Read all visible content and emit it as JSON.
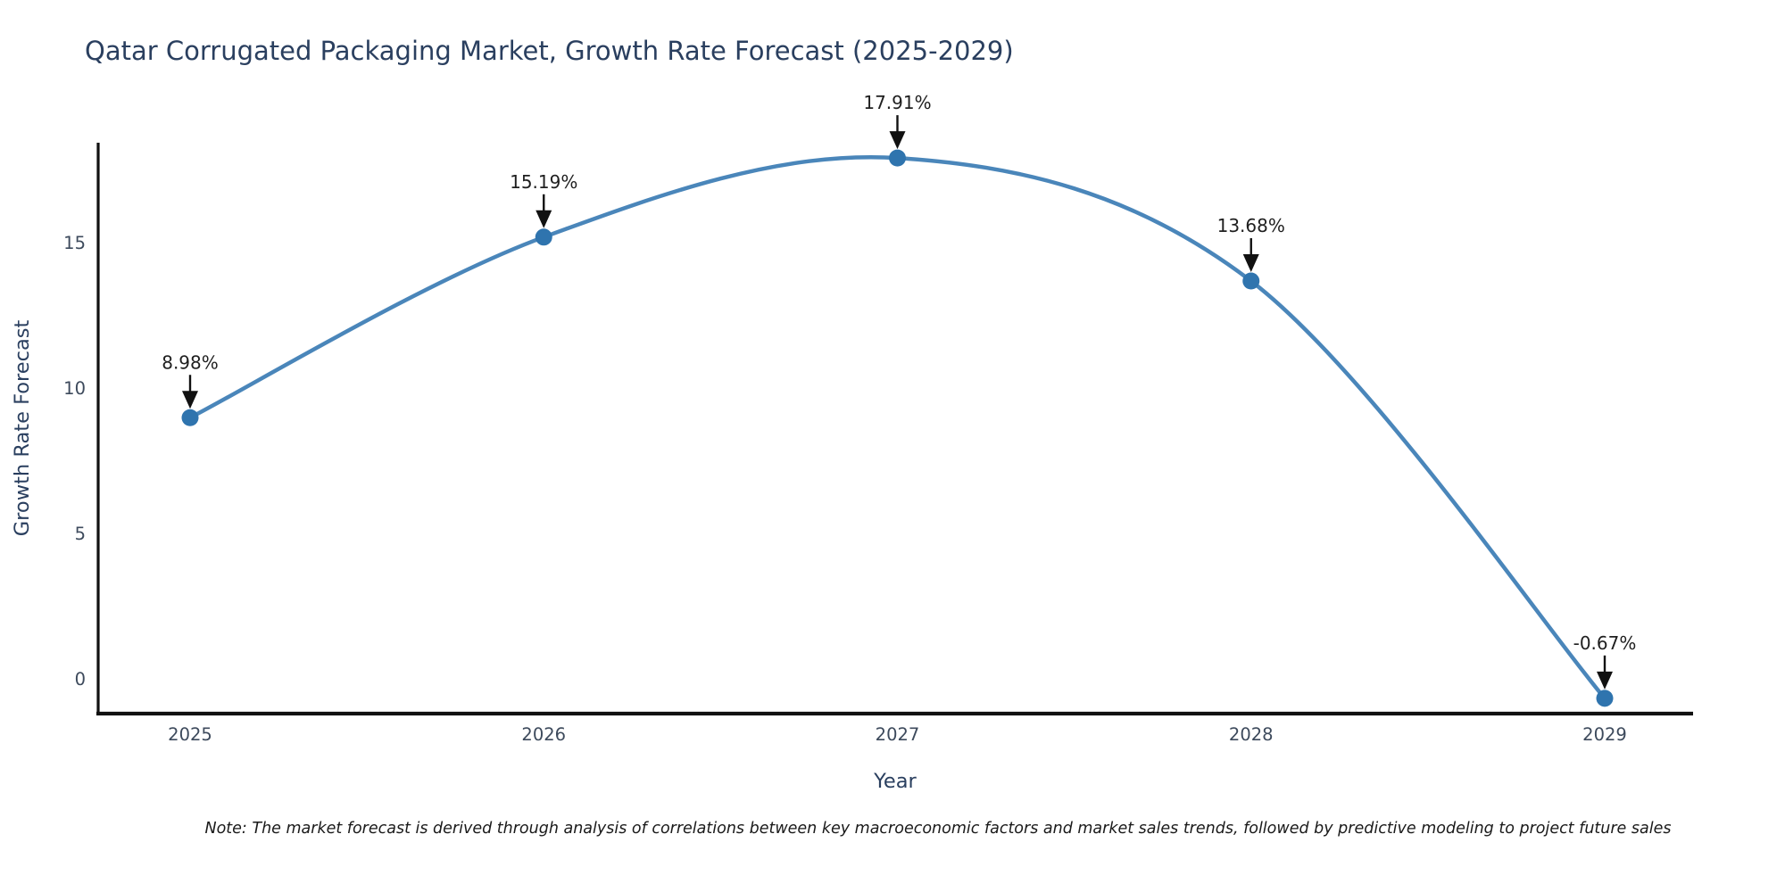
{
  "note": "Note: The market forecast is derived through analysis of correlations between key macroeconomic factors and market sales trends, followed by predictive modeling to project future sales",
  "chart_data": {
    "type": "line",
    "title": "Qatar Corrugated Packaging Market, Growth Rate Forecast (2025-2029)",
    "xlabel": "Year",
    "ylabel": "Growth Rate Forecast",
    "x": [
      2025,
      2026,
      2027,
      2028,
      2029
    ],
    "values": [
      8.98,
      15.19,
      17.91,
      13.68,
      -0.67
    ],
    "point_labels": [
      "8.98%",
      "15.19%",
      "17.91%",
      "13.68%",
      "-0.67%"
    ],
    "yticks": [
      0,
      5,
      10,
      15
    ],
    "xlim": [
      2024.74,
      2029.25
    ],
    "ylim": [
      -1.2,
      18.4
    ],
    "grid": false,
    "legend": "none",
    "line_shape": "spline",
    "colors": {
      "line": "#4a86ba",
      "marker": "#2f74ae",
      "arrow": "#111111",
      "spine": "#111111",
      "title": "#2a3f5f",
      "tick": "#3d4a5c",
      "annotation": "#1f1f1f"
    }
  }
}
